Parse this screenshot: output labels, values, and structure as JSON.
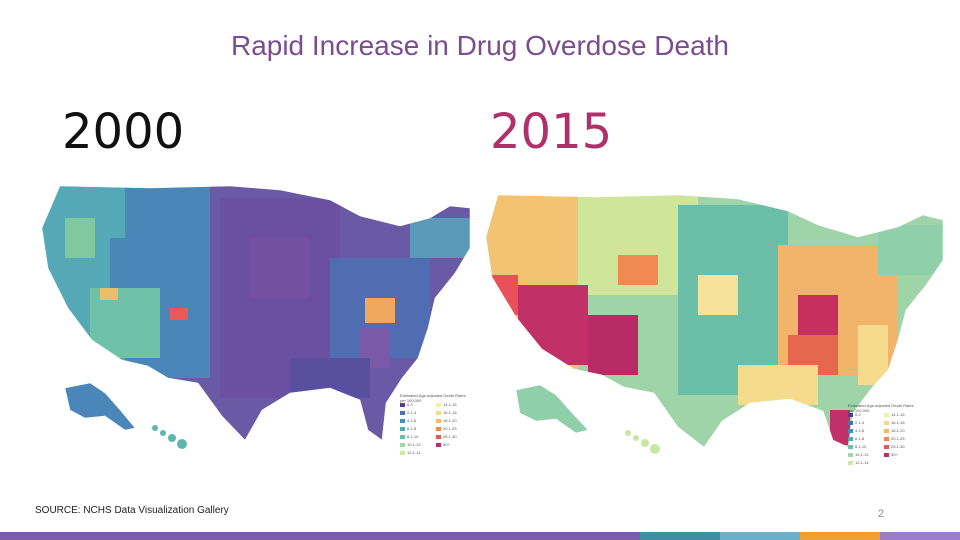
{
  "title": "Rapid Increase in Drug Overdose Death",
  "maps": [
    {
      "year": "2000"
    },
    {
      "year": "2015"
    }
  ],
  "legend": {
    "title": "Estimated Age-adjusted Death Rates per 100,000",
    "entries": [
      {
        "label": "0-2",
        "color": "#5b3a8c"
      },
      {
        "label": "2.1-4",
        "color": "#4d6fb3"
      },
      {
        "label": "4.1-6",
        "color": "#3f8fbf"
      },
      {
        "label": "6.1-8",
        "color": "#4aaeb0"
      },
      {
        "label": "8.1-10",
        "color": "#66c2a0"
      },
      {
        "label": "10.1-12",
        "color": "#9fd8a0"
      },
      {
        "label": "12.1-14",
        "color": "#cdeaa0"
      },
      {
        "label": "14.1-16",
        "color": "#eef2a8"
      },
      {
        "label": "16.1-18",
        "color": "#f5dc8c"
      },
      {
        "label": "18.1-20",
        "color": "#f6b96c"
      },
      {
        "label": "20.1-25",
        "color": "#f08a50"
      },
      {
        "label": "25.1-30",
        "color": "#e35a55"
      },
      {
        "label": "30+",
        "color": "#b8306a"
      }
    ]
  },
  "source": "SOURCE: NCHS Data Visualization Gallery",
  "page_number": "2",
  "footer_colors": [
    "#7b5ea7",
    "#3f8fa0",
    "#6ab0c8",
    "#f0a030",
    "#9b7ec8"
  ]
}
